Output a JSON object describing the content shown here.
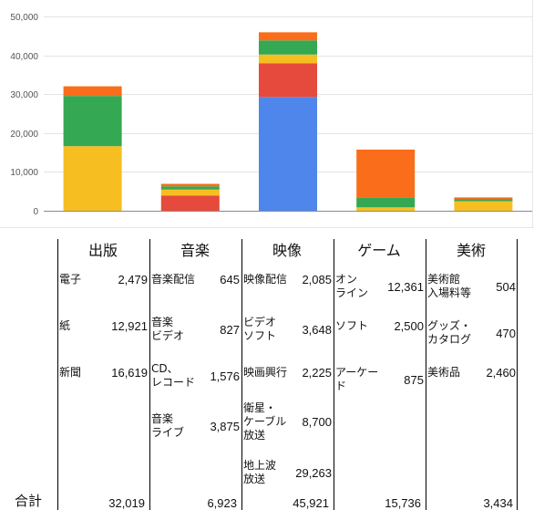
{
  "chart_data": {
    "type": "bar",
    "stacked": true,
    "categories": [
      "出版",
      "音楽",
      "映像",
      "ゲーム",
      "美術"
    ],
    "ylim": [
      0,
      50000
    ],
    "yticks": [
      "0",
      "10,000",
      "20,000",
      "30,000",
      "40,000",
      "50,000"
    ],
    "ytick_values": [
      0,
      10000,
      20000,
      30000,
      40000,
      50000
    ],
    "grid": true,
    "colors": [
      "#4f86ec",
      "#e64a3c",
      "#f7be22",
      "#34a853",
      "#fa6d1b"
    ],
    "series": [
      {
        "values": [
          0,
          0,
          29263,
          0,
          0
        ]
      },
      {
        "values": [
          0,
          3875,
          8700,
          0,
          0
        ]
      },
      {
        "values": [
          16619,
          1576,
          2225,
          875,
          2460
        ]
      },
      {
        "values": [
          12921,
          827,
          3648,
          2500,
          470
        ]
      },
      {
        "values": [
          2479,
          645,
          2085,
          12361,
          504
        ]
      }
    ]
  },
  "table": {
    "columns": [
      {
        "header": "出版",
        "rows": [
          {
            "label": "電子",
            "value": "2,479"
          },
          {
            "label": "紙",
            "value": "12,921"
          },
          {
            "label": "新聞",
            "value": "16,619"
          }
        ],
        "total": "32,019"
      },
      {
        "header": "音楽",
        "rows": [
          {
            "label": "音楽配信",
            "value": "645"
          },
          {
            "label": "音楽\nビデオ",
            "value": "827"
          },
          {
            "label": "CD、\nレコード",
            "value": "1,576"
          },
          {
            "label": "音楽\nライブ",
            "value": "3,875"
          }
        ],
        "total": "6,923"
      },
      {
        "header": "映像",
        "rows": [
          {
            "label": "映像配信",
            "value": "2,085"
          },
          {
            "label": "ビデオ\nソフト",
            "value": "3,648"
          },
          {
            "label": "映画興行",
            "value": "2,225"
          },
          {
            "label": "衛星・\nケーブル\n放送",
            "value": "8,700"
          },
          {
            "label": "地上波\n放送",
            "value": "29,263"
          }
        ],
        "total": "45,921"
      },
      {
        "header": "ゲーム",
        "rows": [
          {
            "label": "オン\nライン",
            "value": "12,361"
          },
          {
            "label": "ソフト",
            "value": "2,500"
          },
          {
            "label": "アーケー\nド",
            "value": "875"
          }
        ],
        "total": "15,736"
      },
      {
        "header": "美術",
        "rows": [
          {
            "label": "美術館\n入場料等",
            "value": "504"
          },
          {
            "label": "グッズ・\nカタログ",
            "value": "470"
          },
          {
            "label": "美術品",
            "value": "2,460"
          }
        ],
        "total": "3,434"
      }
    ],
    "total_label": "合計"
  }
}
